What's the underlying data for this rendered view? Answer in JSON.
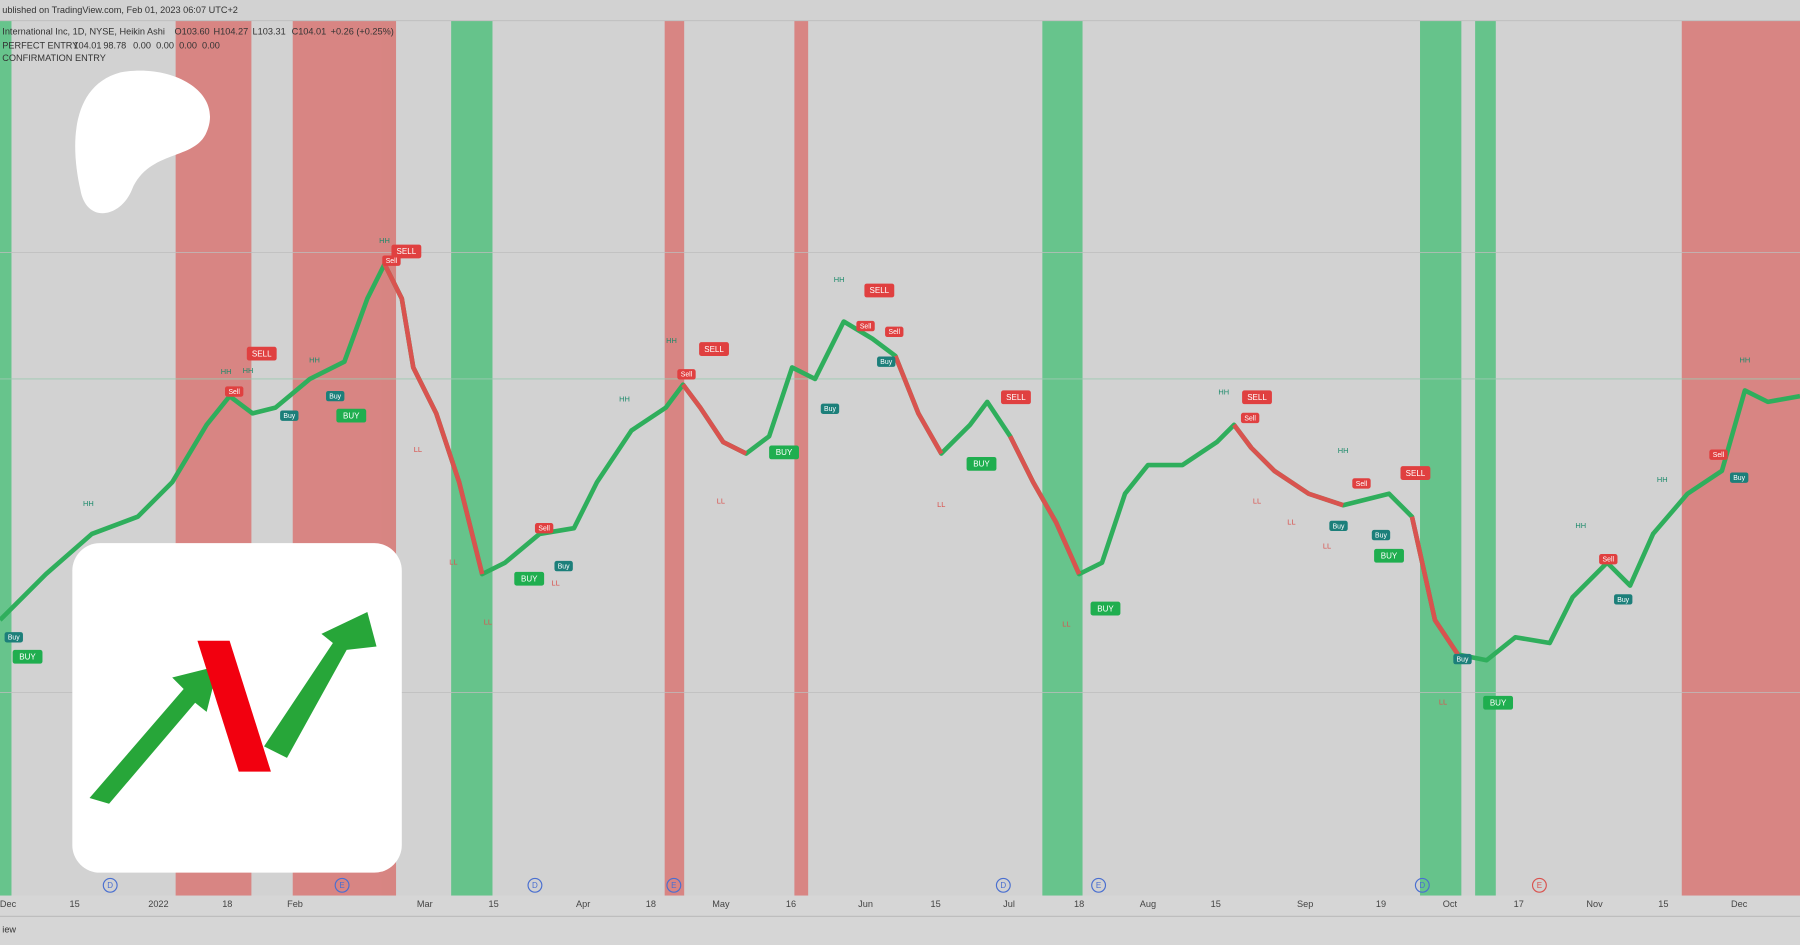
{
  "header": {
    "published": "ublished on TradingView.com, Feb 01, 2023 06:07 UTC+2",
    "symbol": "International Inc, 1D, NYSE, Heikin Ashi",
    "ohlc": [
      "O103.60",
      "H104.27",
      "L103.31",
      "C104.01"
    ],
    "change": "+0.26 (+0.25%)"
  },
  "indicators": [
    {
      "name": "PERFECT ENTRY",
      "values": [
        "104.01",
        "98.78",
        "0.00",
        "0.00",
        "0.00",
        "0.00"
      ]
    },
    {
      "name": "CONFIRMATION ENTRY"
    }
  ],
  "x_axis": [
    "Dec",
    "15",
    "2022",
    "18",
    "Feb",
    "Mar",
    "15",
    "Apr",
    "18",
    "May",
    "16",
    "Jun",
    "15",
    "Jul",
    "18",
    "Aug",
    "15",
    "Sep",
    "19",
    "Oct",
    "17",
    "Nov",
    "15",
    "Dec"
  ],
  "events": [
    "D",
    "E",
    "D",
    "E",
    "D",
    "E",
    "D",
    "E"
  ],
  "signals": [
    "SELL",
    "SELL",
    "BUY",
    "BUY",
    "SELL",
    "SELL",
    "BUY",
    "BUY",
    "SELL",
    "SELL",
    "BUY",
    "BUY",
    "SELL",
    "BUY",
    "BUY",
    "Sell",
    "Sell",
    "Buy",
    "Buy",
    "Buy",
    "Sell",
    "Buy",
    "Sell",
    "Sell",
    "Sell",
    "Buy",
    "Buy",
    "Sell",
    "Sell",
    "Buy",
    "Buy",
    "Buy",
    "Sell",
    "Buy",
    "Buy",
    "Sell"
  ],
  "markers": [
    "HH",
    "HH",
    "HH",
    "HH",
    "HH",
    "HH",
    "HH",
    "HH",
    "HH",
    "HH",
    "HH",
    "HH",
    "HH",
    "LL",
    "LL",
    "LL",
    "LL",
    "LL",
    "LL",
    "LL",
    "LL",
    "LL",
    "LL",
    "LL"
  ],
  "footer": "iew"
}
